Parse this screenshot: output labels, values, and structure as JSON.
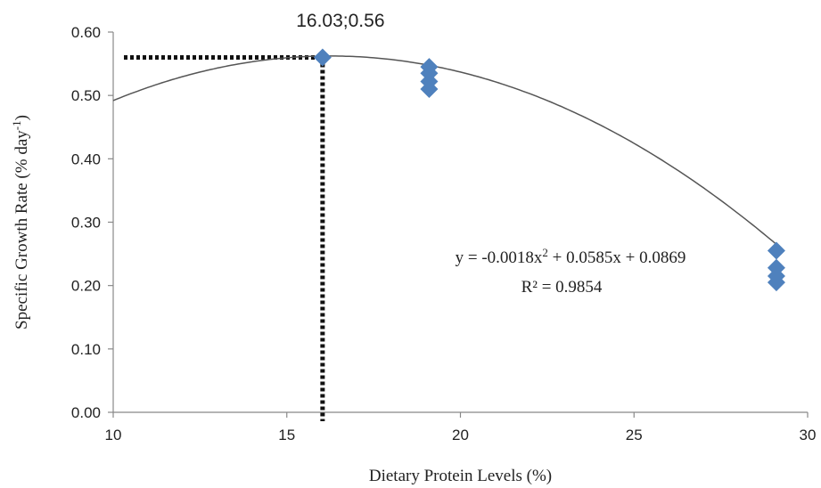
{
  "chart_data": {
    "type": "scatter",
    "xlabel": "Dietary Protein Levels (%)",
    "ylabel": "Specific Growth Rate (% day-1)",
    "ylabel_parts": {
      "main": "Specific Growth Rate (% day",
      "sup": "-1",
      "close": ")"
    },
    "xlim": [
      10,
      30
    ],
    "ylim": [
      0,
      0.6
    ],
    "x_ticks": [
      10,
      15,
      20,
      25,
      30
    ],
    "y_ticks": [
      "0.00",
      "0.10",
      "0.20",
      "0.30",
      "0.40",
      "0.50",
      "0.60"
    ],
    "grid": false,
    "points": [
      {
        "x": 16.03,
        "y": 0.56
      },
      {
        "x": 19.1,
        "y": 0.545
      },
      {
        "x": 19.1,
        "y": 0.535
      },
      {
        "x": 19.1,
        "y": 0.522
      },
      {
        "x": 19.1,
        "y": 0.51
      },
      {
        "x": 29.1,
        "y": 0.255
      },
      {
        "x": 29.1,
        "y": 0.228
      },
      {
        "x": 29.1,
        "y": 0.215
      },
      {
        "x": 29.1,
        "y": 0.205
      }
    ],
    "trendline": {
      "type": "polynomial",
      "a": -0.0018,
      "b": 0.0585,
      "c": 0.0869,
      "x_range": [
        10,
        29.1
      ]
    },
    "equation": {
      "prefix": "y = -0.0018x",
      "sup": "2",
      "suffix": " + 0.0585x + 0.0869"
    },
    "r_squared": "R² = 0.9854",
    "annotation": {
      "label": "16.03;0.56",
      "x": 16.03,
      "y": 0.56
    },
    "colors": {
      "marker": "#4f81bd",
      "trendline": "#555555",
      "guide": "#111111",
      "axis": "#888888"
    }
  }
}
